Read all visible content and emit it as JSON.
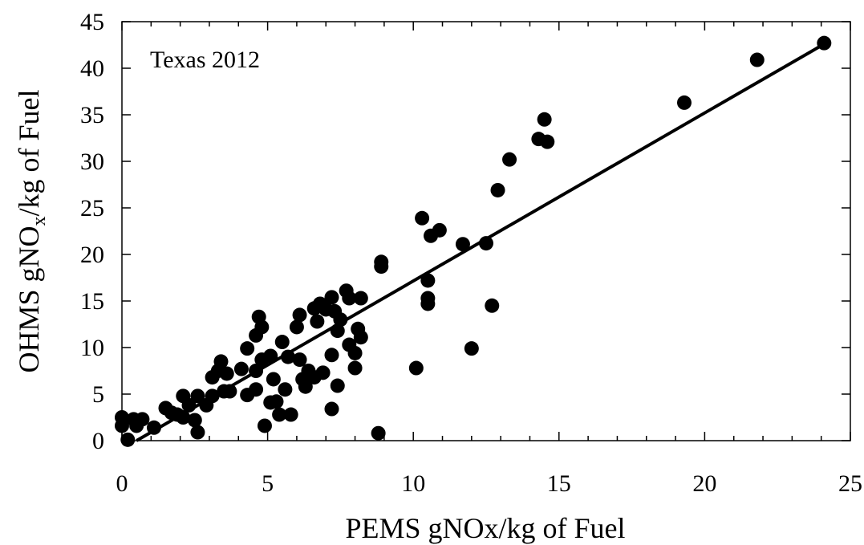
{
  "chart_data": {
    "type": "scatter",
    "ylabel": [
      "OHMS gNO",
      "x",
      "/kg of Fuel"
    ],
    "xlabel": "PEMS gNOx/kg of Fuel",
    "annotation": "Texas 2012",
    "color": "#000000",
    "x": [
      0,
      0,
      0.2,
      0.4,
      0.5,
      0.7,
      1.1,
      1.5,
      1.7,
      1.9,
      2.1,
      2.1,
      2.3,
      2.5,
      2.6,
      2.6,
      2.9,
      3.1,
      3.1,
      3.3,
      3.4,
      3.5,
      3.6,
      3.7,
      4.1,
      4.3,
      4.3,
      4.6,
      4.6,
      4.6,
      4.7,
      4.8,
      4.8,
      4.9,
      5.1,
      5.1,
      5.2,
      5.3,
      5.4,
      5.5,
      5.6,
      5.7,
      5.8,
      6.0,
      6.1,
      6.1,
      6.2,
      6.3,
      6.4,
      6.6,
      6.6,
      6.7,
      6.8,
      6.9,
      7.0,
      7.2,
      7.2,
      7.2,
      7.3,
      7.4,
      7.4,
      7.5,
      7.7,
      7.8,
      7.8,
      8.0,
      8.0,
      8.1,
      8.2,
      8.2,
      8.8,
      8.9,
      8.9,
      10.1,
      10.3,
      10.5,
      10.5,
      10.5,
      10.6,
      10.9,
      11.7,
      12.0,
      12.5,
      12.7,
      12.9,
      13.3,
      14.3,
      14.5,
      14.6,
      19.3,
      21.8,
      24.1
    ],
    "y": [
      2.5,
      1.6,
      0.1,
      2.3,
      1.6,
      2.3,
      1.4,
      3.5,
      3.0,
      2.8,
      4.8,
      2.5,
      3.8,
      2.2,
      4.8,
      0.9,
      3.8,
      4.8,
      6.8,
      7.5,
      8.5,
      5.3,
      7.2,
      5.3,
      7.7,
      4.9,
      9.9,
      5.5,
      7.5,
      11.3,
      13.3,
      12.2,
      8.7,
      1.6,
      4.1,
      9.1,
      6.6,
      4.2,
      2.8,
      10.6,
      5.5,
      9.0,
      2.8,
      12.2,
      13.5,
      8.7,
      6.6,
      5.8,
      7.5,
      6.8,
      14.2,
      12.8,
      14.7,
      7.3,
      14.1,
      3.4,
      9.2,
      15.4,
      13.9,
      5.9,
      11.8,
      13.0,
      16.1,
      10.3,
      15.3,
      9.4,
      7.8,
      12.0,
      11.1,
      15.3,
      0.8,
      18.7,
      19.2,
      7.8,
      23.9,
      17.2,
      14.7,
      15.3,
      22.0,
      22.6,
      21.1,
      9.9,
      21.2,
      14.5,
      26.9,
      30.2,
      32.4,
      34.5,
      32.1,
      36.3,
      40.9,
      42.7
    ],
    "fit": {
      "x": [
        0.5,
        24.1
      ],
      "y": [
        0,
        42.6
      ]
    },
    "xlim": [
      0,
      25
    ],
    "ylim": [
      0,
      45
    ],
    "xticks": [
      0,
      5,
      10,
      15,
      20,
      25
    ],
    "yticks": [
      0,
      5,
      10,
      15,
      20,
      25,
      30,
      35,
      40,
      45
    ],
    "x_minor_ticks": [
      1,
      2,
      3,
      4,
      6,
      7,
      8,
      9,
      11,
      12,
      13,
      14,
      16,
      17,
      18,
      19,
      21,
      22,
      23,
      24
    ]
  }
}
